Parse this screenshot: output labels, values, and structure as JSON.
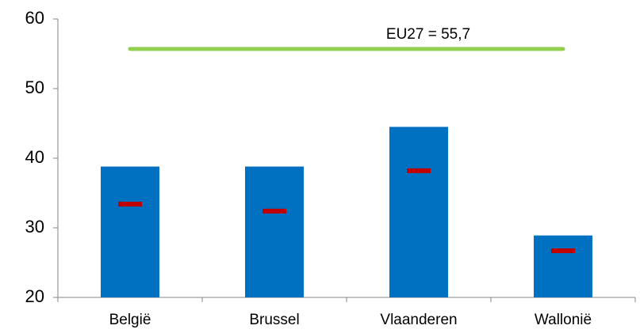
{
  "chart_data": {
    "type": "bar",
    "categories": [
      "België",
      "Brussel",
      "Vlaanderen",
      "Wallonië"
    ],
    "series": [
      {
        "color": "#0070c0",
        "values": [
          38.8,
          38.8,
          44.5,
          28.9
        ]
      },
      {
        "color": "#c00000",
        "values": [
          33.4,
          32.4,
          38.2,
          26.7
        ]
      }
    ],
    "reference": {
      "value": 55.7,
      "label": "EU27 = 55,7",
      "color": "#92d050"
    },
    "ylim": [
      20,
      60
    ],
    "yticks": [
      20,
      30,
      40,
      50,
      60
    ],
    "grid": false
  }
}
